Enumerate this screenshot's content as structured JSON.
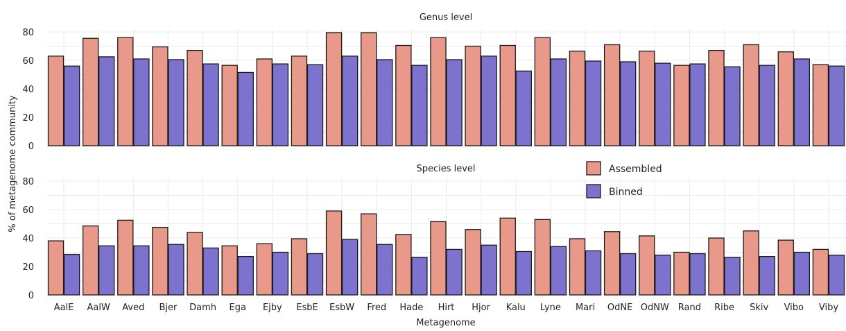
{
  "chart_data": {
    "type": "bar",
    "xlabel": "Metagenome",
    "ylabel": "% of metagenome community",
    "ylim": [
      0,
      80
    ],
    "yticks": [
      0,
      20,
      40,
      60,
      80
    ],
    "grid": true,
    "legend_position": "right, inside lower panel",
    "categories": [
      "AalE",
      "AalW",
      "Aved",
      "Bjer",
      "Damh",
      "Ega",
      "Ejby",
      "EsbE",
      "EsbW",
      "Fred",
      "Hade",
      "Hirt",
      "Hjor",
      "Kalu",
      "Lyne",
      "Mari",
      "OdNE",
      "OdNW",
      "Rand",
      "Ribe",
      "Skiv",
      "Vibo",
      "Viby"
    ],
    "legend": [
      {
        "name": "Assembled",
        "color": "#e8998a"
      },
      {
        "name": "Binned",
        "color": "#7d73cf"
      }
    ],
    "panels": [
      {
        "title": "Genus level",
        "series": [
          {
            "name": "Assembled",
            "values": [
              63,
              75.5,
              76,
              69.5,
              67,
              56.5,
              61,
              63,
              79.5,
              79.5,
              70.5,
              76,
              70,
              70.5,
              76,
              66.5,
              71,
              66.5,
              56.5,
              67,
              71,
              66,
              57
            ]
          },
          {
            "name": "Binned",
            "values": [
              56,
              62.5,
              61,
              60.5,
              57.5,
              51.5,
              57.5,
              57,
              63,
              60.5,
              56.5,
              60.5,
              63,
              52.5,
              61,
              59.5,
              59,
              58,
              57.5,
              55.5,
              56.5,
              61,
              56
            ]
          }
        ]
      },
      {
        "title": "Species level",
        "series": [
          {
            "name": "Assembled",
            "values": [
              38,
              48.5,
              52.5,
              47.5,
              44,
              34.5,
              36,
              39.5,
              59,
              57,
              42.5,
              51.5,
              46,
              54,
              53,
              39.5,
              44.5,
              41.5,
              30,
              40,
              45,
              38.5,
              32
            ]
          },
          {
            "name": "Binned",
            "values": [
              28.5,
              34.5,
              34.5,
              35.5,
              33,
              27,
              30,
              29,
              39,
              35.5,
              26.5,
              32,
              35,
              30.5,
              34,
              31,
              29,
              28,
              29,
              26.5,
              27,
              30,
              28
            ]
          }
        ]
      }
    ]
  }
}
